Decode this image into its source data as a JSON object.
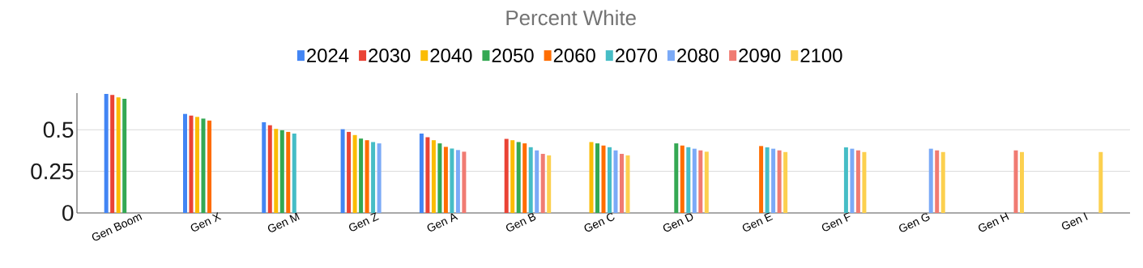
{
  "chart_data": {
    "type": "bar",
    "title": "Percent White",
    "categories": [
      "Gen Boom",
      "Gen X",
      "Gen M",
      "Gen Z",
      "Gen A",
      "Gen B",
      "Gen C",
      "Gen D",
      "Gen E",
      "Gen F",
      "Gen G",
      "Gen H",
      "Gen I"
    ],
    "series": [
      {
        "name": "2024",
        "color": "#4285f4",
        "values": [
          0.715,
          0.595,
          0.545,
          0.503,
          0.477,
          null,
          null,
          null,
          null,
          null,
          null,
          null,
          null
        ]
      },
      {
        "name": "2030",
        "color": "#ea4335",
        "values": [
          0.709,
          0.585,
          0.527,
          0.487,
          0.455,
          0.445,
          null,
          null,
          null,
          null,
          null,
          null,
          null
        ]
      },
      {
        "name": "2040",
        "color": "#fbbc04",
        "values": [
          0.695,
          0.577,
          0.505,
          0.468,
          0.437,
          0.437,
          0.426,
          null,
          null,
          null,
          null,
          null,
          null
        ]
      },
      {
        "name": "2050",
        "color": "#34a853",
        "values": [
          0.686,
          0.567,
          0.497,
          0.447,
          0.418,
          0.426,
          0.418,
          0.418,
          null,
          null,
          null,
          null,
          null
        ]
      },
      {
        "name": "2060",
        "color": "#ff6d01",
        "values": [
          null,
          0.555,
          0.487,
          0.437,
          0.397,
          0.418,
          0.405,
          0.405,
          0.402,
          null,
          null,
          null,
          null
        ]
      },
      {
        "name": "2070",
        "color": "#46bdc6",
        "values": [
          null,
          null,
          0.477,
          0.426,
          0.387,
          0.395,
          0.395,
          0.395,
          0.394,
          0.394,
          null,
          null,
          null
        ]
      },
      {
        "name": "2080",
        "color": "#7baaf7",
        "values": [
          null,
          null,
          null,
          0.418,
          0.378,
          0.376,
          0.376,
          0.386,
          0.386,
          0.386,
          0.386,
          null,
          null
        ]
      },
      {
        "name": "2090",
        "color": "#f07b72",
        "values": [
          null,
          null,
          null,
          null,
          0.368,
          0.355,
          0.355,
          0.376,
          0.376,
          0.376,
          0.376,
          0.376,
          null
        ]
      },
      {
        "name": "2100",
        "color": "#fcd04f",
        "values": [
          null,
          null,
          null,
          null,
          null,
          0.346,
          0.346,
          0.368,
          0.366,
          0.366,
          0.366,
          0.366,
          0.366
        ]
      }
    ],
    "ylim": [
      0,
      0.72
    ],
    "yticks": [
      0,
      0.25,
      0.5
    ],
    "grid": "y",
    "legend": "top"
  }
}
